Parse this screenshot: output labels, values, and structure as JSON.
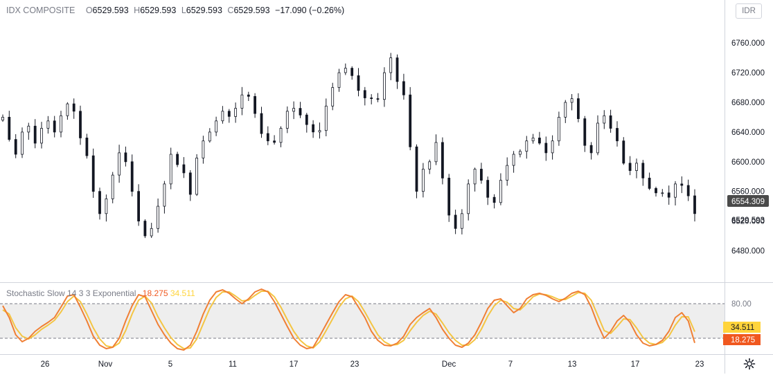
{
  "header": {
    "symbol": "IDX COMPOSITE",
    "open_label": "O",
    "open": "6529.593",
    "high_label": "H",
    "high": "6529.593",
    "low_label": "L",
    "low": "6529.593",
    "close_label": "C",
    "close": "6529.593",
    "change": "−17.090 (−0.26%)"
  },
  "currency_button": "IDR",
  "indicator": {
    "name": "Stochastic Slow 14 3 3 Exponential",
    "k_value": "18.275",
    "d_value": "34.511"
  },
  "colors": {
    "k_line": "#f07f34",
    "d_line": "#f4c542",
    "k_badge": "#f0581f",
    "d_badge": "#ffd43b",
    "price_badge": "#4a4a4a",
    "candle": "#131722",
    "band_fill": "#eeeeee"
  },
  "chart_data": [
    {
      "type": "candlestick",
      "title": "IDX COMPOSITE",
      "y_ticks": [
        6760,
        6720,
        6680,
        6640,
        6600,
        6560,
        6520,
        6480
      ],
      "y_tick_labels": [
        "6760.000",
        "6720.000",
        "6680.000",
        "6640.000",
        "6600.000",
        "6560.000",
        "6520.000",
        "6480.000"
      ],
      "ylim": [
        6445,
        6790
      ],
      "x_tick_labels": [
        "26",
        "Nov",
        "5",
        "11",
        "17",
        "23",
        "Dec",
        "7",
        "13",
        "17",
        "23"
      ],
      "x_tick_dates": [
        "Oct 26",
        "Nov 1",
        "Nov 5",
        "Nov 11",
        "Nov 17",
        "Nov 23",
        "Dec 1",
        "Dec 7",
        "Dec 13",
        "Dec 17",
        "Dec 23"
      ],
      "current_price_label": "6554.309",
      "last_close_label": "6529.593",
      "closes": [
        6660,
        6630,
        6610,
        6640,
        6648,
        6625,
        6645,
        6655,
        6640,
        6662,
        6678,
        6668,
        6632,
        6608,
        6560,
        6530,
        6550,
        6582,
        6612,
        6600,
        6560,
        6520,
        6500,
        6510,
        6540,
        6570,
        6610,
        6596,
        6585,
        6556,
        6605,
        6628,
        6640,
        6655,
        6668,
        6661,
        6672,
        6690,
        6688,
        6665,
        6638,
        6628,
        6626,
        6645,
        6668,
        6672,
        6663,
        6650,
        6640,
        6642,
        6675,
        6700,
        6720,
        6726,
        6716,
        6696,
        6686,
        6685,
        6684,
        6720,
        6740,
        6708,
        6690,
        6620,
        6560,
        6590,
        6600,
        6626,
        6578,
        6528,
        6510,
        6530,
        6570,
        6590,
        6575,
        6552,
        6545,
        6575,
        6595,
        6610,
        6614,
        6628,
        6632,
        6625,
        6612,
        6628,
        6660,
        6680,
        6685,
        6658,
        6622,
        6612,
        6652,
        6662,
        6645,
        6628,
        6598,
        6588,
        6598,
        6578,
        6564,
        6558,
        6558,
        6552,
        6570,
        6568,
        6554,
        6530
      ]
    },
    {
      "type": "line",
      "title": "Stochastic Slow 14 3 3 Exponential",
      "ylim": [
        0,
        100
      ],
      "levels": [
        80,
        20
      ],
      "level_labels": [
        "80.00"
      ],
      "badges": [
        "34.511",
        "18.275"
      ],
      "series": [
        {
          "name": "%K",
          "values": [
            72,
            55,
            30,
            20,
            25,
            35,
            42,
            48,
            55,
            70,
            86,
            88,
            70,
            50,
            28,
            15,
            10,
            12,
            25,
            50,
            72,
            88,
            85,
            65,
            45,
            30,
            18,
            10,
            8,
            15,
            35,
            60,
            80,
            92,
            95,
            90,
            82,
            75,
            82,
            92,
            96,
            92,
            78,
            60,
            42,
            25,
            15,
            10,
            12,
            28,
            45,
            62,
            78,
            88,
            85,
            70,
            55,
            35,
            22,
            15,
            14,
            18,
            28,
            45,
            55,
            62,
            68,
            55,
            38,
            25,
            15,
            12,
            18,
            30,
            48,
            68,
            80,
            82,
            72,
            62,
            68,
            82,
            88,
            90,
            87,
            82,
            78,
            83,
            90,
            93,
            88,
            70,
            45,
            25,
            35,
            50,
            58,
            48,
            30,
            18,
            14,
            16,
            22,
            35,
            55,
            62,
            50,
            18.3
          ]
        },
        {
          "name": "%D",
          "values": [
            66,
            60,
            40,
            28,
            24,
            30,
            38,
            44,
            51,
            63,
            78,
            86,
            78,
            60,
            40,
            24,
            14,
            12,
            18,
            36,
            60,
            80,
            86,
            76,
            56,
            40,
            26,
            16,
            10,
            11,
            24,
            46,
            68,
            84,
            92,
            92,
            86,
            79,
            80,
            87,
            93,
            93,
            85,
            70,
            52,
            35,
            22,
            14,
            11,
            20,
            36,
            53,
            70,
            82,
            86,
            78,
            63,
            46,
            30,
            20,
            15,
            16,
            22,
            36,
            48,
            58,
            64,
            60,
            47,
            33,
            22,
            15,
            15,
            23,
            38,
            57,
            72,
            80,
            77,
            68,
            66,
            75,
            85,
            89,
            88,
            85,
            81,
            81,
            86,
            91,
            90,
            80,
            58,
            36,
            32,
            42,
            53,
            52,
            40,
            26,
            18,
            16,
            19,
            28,
            44,
            56,
            56,
            34.5
          ]
        }
      ]
    }
  ]
}
